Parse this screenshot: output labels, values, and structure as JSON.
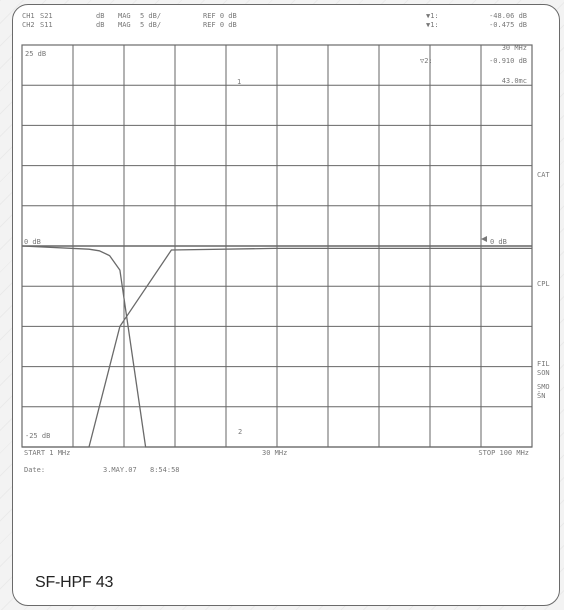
{
  "header": {
    "ch1": {
      "channel": "CH1",
      "param": "S21",
      "fmt": "dB",
      "mode": "MAG",
      "scale": "5 dB/",
      "ref": "REF 0 dB"
    },
    "ch2": {
      "channel": "CH2",
      "param": "S11",
      "fmt": "dB",
      "mode": "MAG",
      "scale": "5 dB/",
      "ref": "REF 0 dB"
    },
    "marker1": {
      "label": "▼1:",
      "value": "-48.06 dB"
    },
    "marker1b": {
      "label": "▼1:",
      "value": "-0.475 dB"
    },
    "marker_freq": "30 MHz",
    "marker2": {
      "label": "▽2:",
      "value": "-0.910 dB"
    },
    "marker2_freq": "43.0mc"
  },
  "left_labels": {
    "top": "25 dB",
    "mid": "0 dB",
    "bottom": "-25 dB"
  },
  "right_labels": {
    "mid": "0 dB",
    "cat": "CAT",
    "cpl": "CPL",
    "fil": "FIL",
    "son": "SON",
    "smo": "SMO",
    "sn": "ŠN"
  },
  "footer": {
    "start": "START  1 MHz",
    "center": "30 MHz",
    "stop": "STOP 100 MHz",
    "date_label": "Date:",
    "date": "3.MAY.07",
    "time": "8:54:58"
  },
  "caption": "SF-HPF 43",
  "colors": {
    "trace": "#6a6a6a",
    "grid": "#666666",
    "frame": "#6a6a6a"
  },
  "chart_data": {
    "type": "line",
    "x_axis": {
      "range": [
        1,
        100
      ],
      "unit": "MHz",
      "divisions": 10
    },
    "y_axis": {
      "ref": 0,
      "per_div": 5,
      "unit": "dB",
      "top_label": 25,
      "bottom_label": -25
    },
    "series": [
      {
        "name": "S21",
        "x": [
          1,
          10,
          14,
          20,
          30,
          50,
          100
        ],
        "y": [
          -99,
          -99,
          -45,
          -10,
          -0.5,
          -0.3,
          -0.3
        ]
      },
      {
        "name": "S11",
        "x": [
          1,
          14,
          16,
          18,
          20,
          25,
          30,
          33,
          34,
          40,
          50,
          55,
          60,
          65,
          70,
          75,
          100
        ],
        "y": [
          0,
          -0.4,
          -0.6,
          -1.2,
          -3,
          -40,
          -99,
          -99,
          -93,
          -93,
          -91,
          -93,
          -92,
          -94,
          -93,
          -96,
          -96
        ]
      }
    ],
    "markers": [
      {
        "label": "1",
        "x": 30
      },
      {
        "label": "2",
        "x": 43
      }
    ]
  }
}
